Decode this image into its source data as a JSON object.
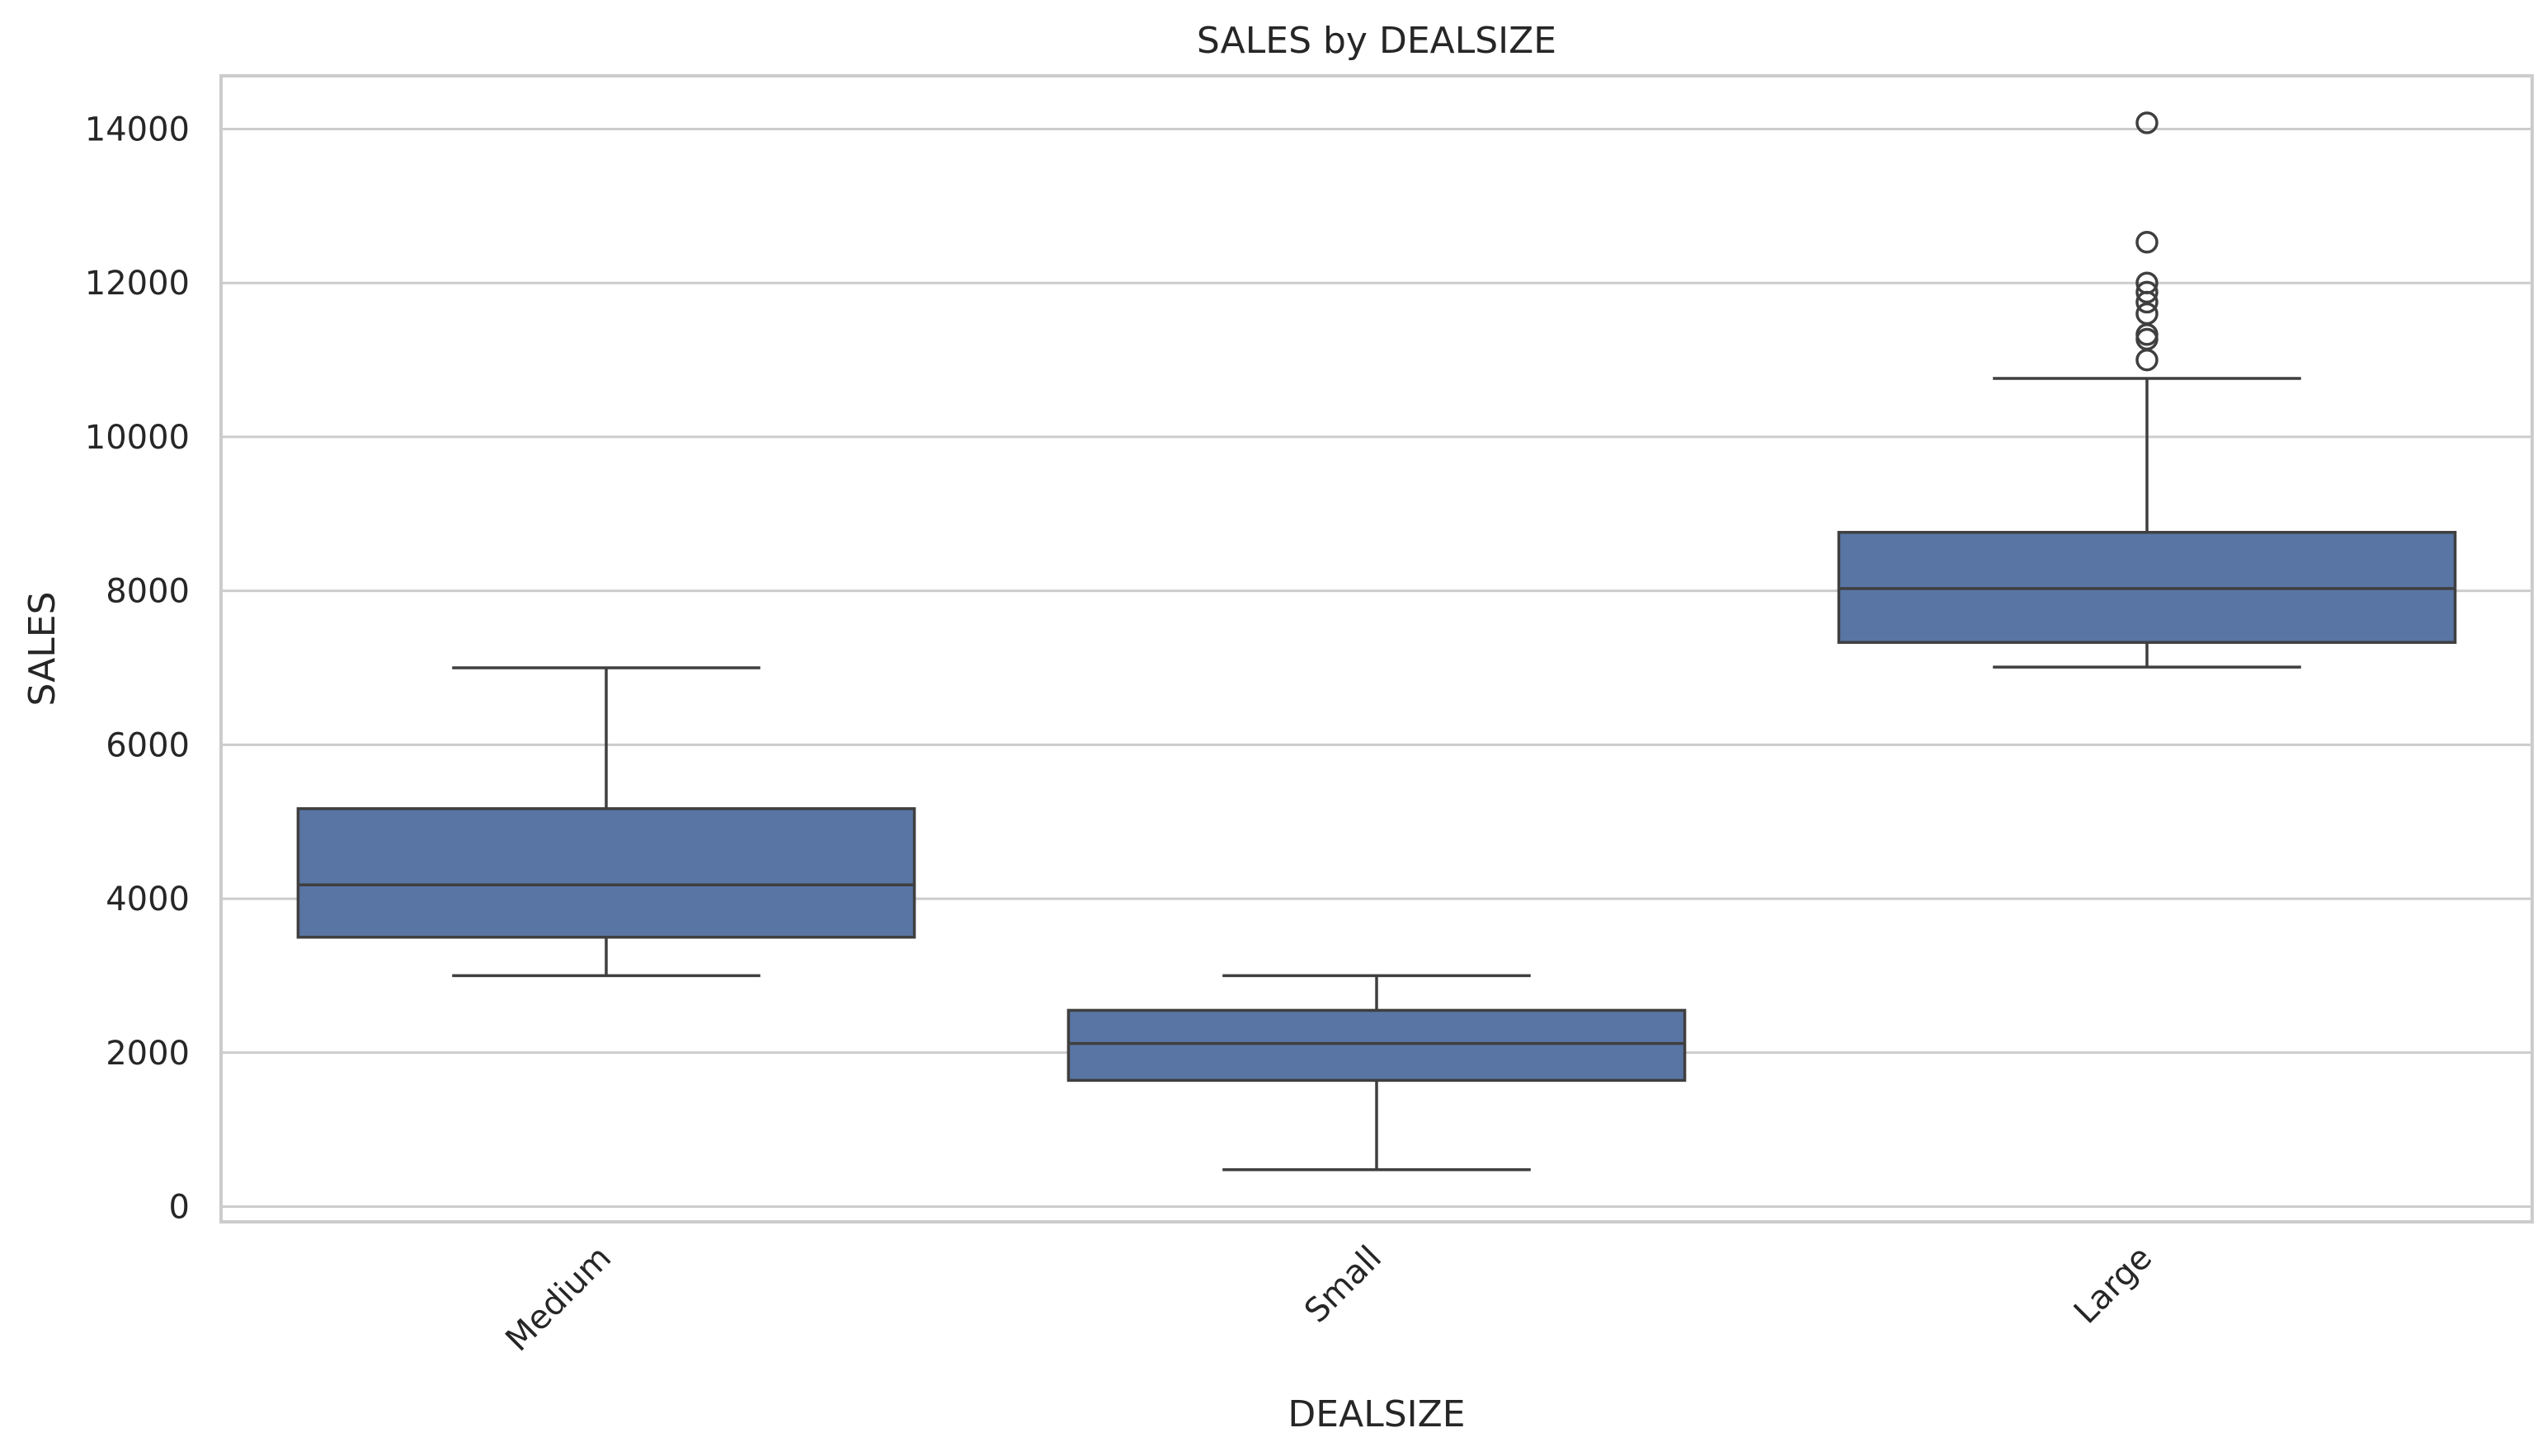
{
  "chart_data": {
    "type": "box",
    "title": "SALES by DEALSIZE",
    "xlabel": "DEALSIZE",
    "ylabel": "SALES",
    "ylim": [
      -250,
      14750
    ],
    "yticks": [
      0,
      2000,
      4000,
      6000,
      8000,
      10000,
      12000,
      14000
    ],
    "ytick_labels": [
      "0",
      "2000",
      "4000",
      "6000",
      "8000",
      "10000",
      "12000",
      "14000"
    ],
    "categories": [
      "Medium",
      "Small",
      "Large"
    ],
    "box_color": "#5875a4",
    "line_color": "#3f3f3f",
    "grid": "horizontal",
    "boxes": [
      {
        "category": "Medium",
        "whisker_low": 3000,
        "q1": 3500,
        "median": 4180,
        "q3": 5170,
        "whisker_high": 7000,
        "outliers": []
      },
      {
        "category": "Small",
        "whisker_low": 480,
        "q1": 1640,
        "median": 2120,
        "q3": 2550,
        "whisker_high": 3000,
        "outliers": []
      },
      {
        "category": "Large",
        "whisker_low": 7010,
        "q1": 7330,
        "median": 8030,
        "q3": 8760,
        "whisker_high": 10760,
        "outliers": [
          11000,
          11270,
          11330,
          11600,
          11750,
          11880,
          12000,
          12530,
          14080
        ]
      }
    ]
  }
}
